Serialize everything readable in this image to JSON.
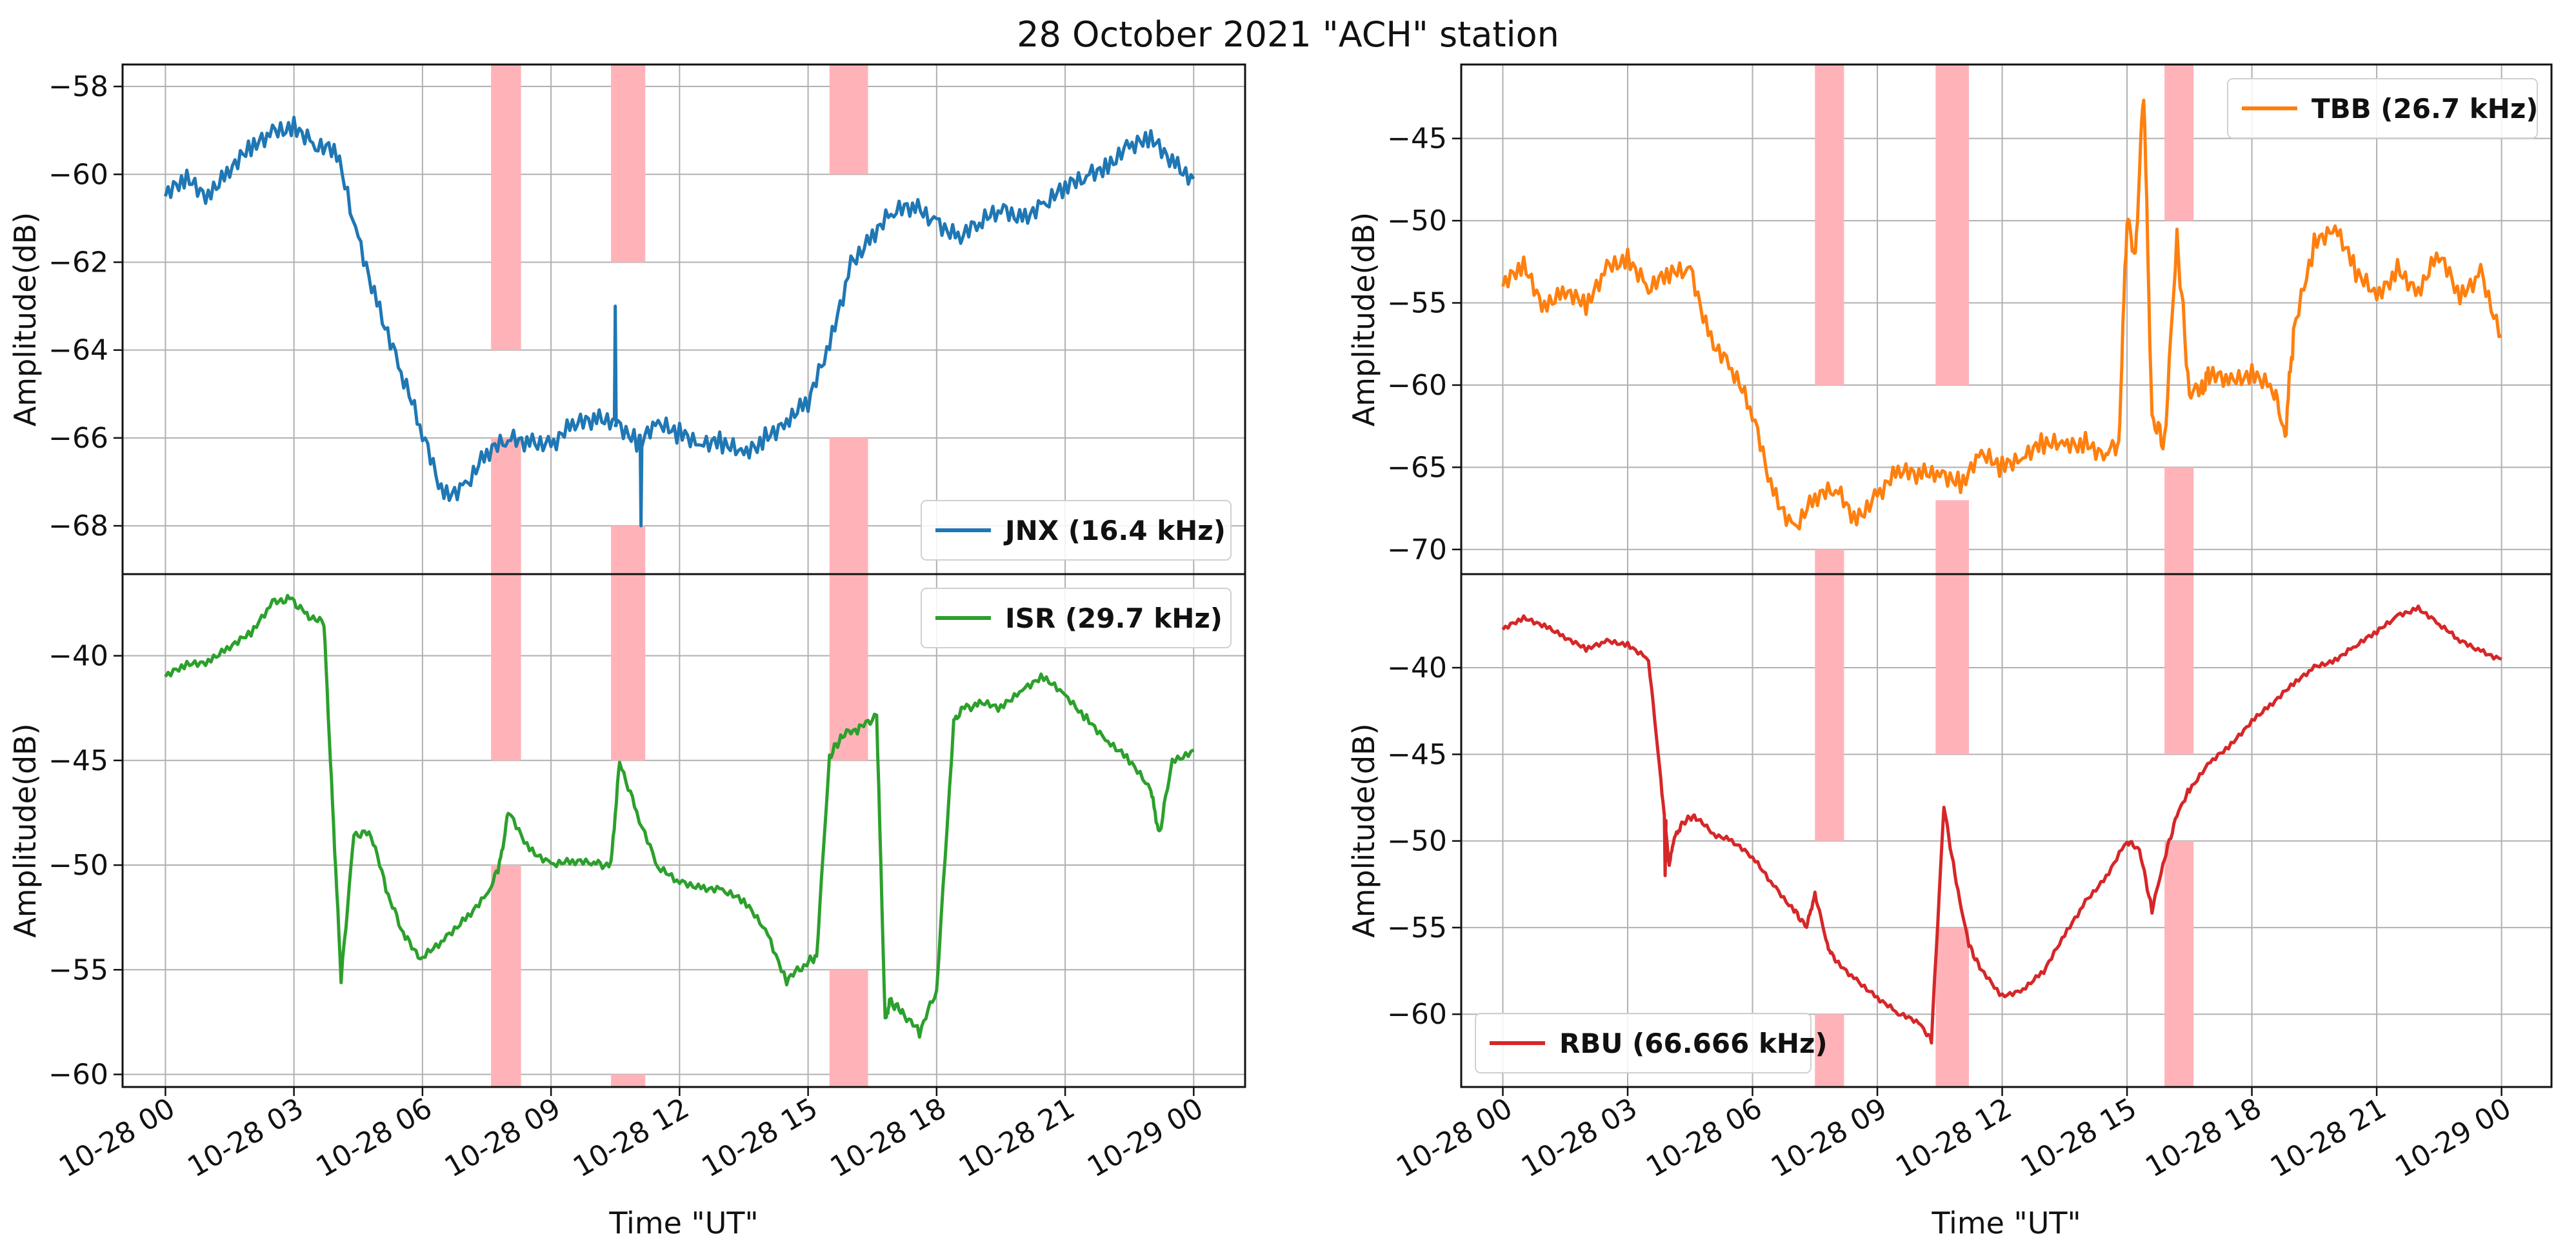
{
  "figure": {
    "title": "28 October 2021 \"ACH\" station"
  },
  "colors": {
    "jnx": "#1f77b4",
    "tbb": "#ff7f0e",
    "isr": "#2ca02c",
    "rbu": "#d62728",
    "shade": "#ffb3b8",
    "grid": "#b0b0b0"
  },
  "chart_data": [
    {
      "id": "jnx",
      "type": "line",
      "panel": "left-top",
      "legend": "JNX (16.4 kHz)",
      "legend_loc": "lower-right",
      "ylabel": "Amplitude(dB)",
      "xlabel": "",
      "ylim": [
        -69.1,
        -57.5
      ],
      "yticks": [
        -58,
        -60,
        -62,
        -64,
        -66,
        -68
      ],
      "ytick_labels": [
        "−58",
        "−60",
        "−62",
        "−64",
        "−66",
        "−68"
      ],
      "xlim_hours": [
        -1,
        25.2
      ],
      "x_hours": [
        0,
        0.5,
        1,
        1.5,
        2,
        2.5,
        3,
        3.5,
        4,
        4.5,
        5,
        5.5,
        6,
        6.5,
        7,
        7.5,
        8,
        8.5,
        9,
        9.5,
        10,
        10.5,
        11,
        11.5,
        12,
        12.5,
        13,
        13.5,
        14,
        14.5,
        15,
        15.5,
        16,
        16.5,
        17,
        17.5,
        18,
        18.5,
        19,
        19.5,
        20,
        20.5,
        21,
        21.5,
        22,
        22.5,
        23,
        23.5,
        24
      ],
      "values": [
        -60.5,
        -60.2,
        -60.4,
        -59.8,
        -59.5,
        -59.1,
        -58.8,
        -59.3,
        -59.6,
        -61.5,
        -63.0,
        -64.5,
        -66.0,
        -67.3,
        -67.0,
        -66.4,
        -66.1,
        -66.0,
        -66.1,
        -65.8,
        -65.6,
        -65.5,
        -66.1,
        -65.8,
        -65.9,
        -66.0,
        -66.1,
        -66.5,
        -66.0,
        -65.5,
        -65.2,
        -64.0,
        -62.0,
        -61.3,
        -60.9,
        -60.8,
        -61.0,
        -61.4,
        -61.2,
        -60.8,
        -60.9,
        -60.7,
        -60.4,
        -60.0,
        -59.7,
        -59.4,
        -59.3,
        -59.6,
        -60.1
      ],
      "spikes": [
        {
          "x_hours": 10.5,
          "value": -63.0
        },
        {
          "x_hours": 11.1,
          "value": -68.0
        }
      ]
    },
    {
      "id": "isr",
      "type": "line",
      "panel": "left-bottom",
      "legend": "ISR (29.7 kHz)",
      "legend_loc": "upper-right",
      "ylabel": "Amplitude(dB)",
      "xlabel": "Time \"UT\"",
      "ylim": [
        -60.6,
        -36.1
      ],
      "yticks": [
        -40,
        -45,
        -50,
        -55,
        -60
      ],
      "ytick_labels": [
        "−40",
        "−45",
        "−50",
        "−55",
        "−60"
      ],
      "xlim_hours": [
        -1,
        25.2
      ],
      "x_hours": [
        0,
        0.5,
        1,
        1.5,
        2,
        2.5,
        2.9,
        3.3,
        3.7,
        3.9,
        4.1,
        4.4,
        4.8,
        5.2,
        5.6,
        6.0,
        6.5,
        7.0,
        7.5,
        7.8,
        8.0,
        8.5,
        9,
        9.5,
        10,
        10.4,
        10.6,
        11.0,
        11.5,
        12,
        12.5,
        13,
        13.5,
        14,
        14.5,
        14.9,
        15.2,
        15.5,
        15.8,
        16.2,
        16.6,
        16.8,
        16.9,
        17.2,
        17.6,
        18.0,
        18.4,
        18.6,
        19,
        19.5,
        20,
        20.5,
        21,
        21.5,
        22,
        22.5,
        23,
        23.2,
        23.5,
        24
      ],
      "values": [
        -41.0,
        -40.5,
        -40.2,
        -39.5,
        -39.0,
        -37.5,
        -37.2,
        -38.0,
        -38.5,
        -47.0,
        -55.5,
        -48.5,
        -48.5,
        -51.5,
        -53.5,
        -54.5,
        -53.5,
        -52.5,
        -51.5,
        -50.0,
        -47.5,
        -49.2,
        -49.9,
        -49.9,
        -49.9,
        -50.0,
        -45.0,
        -47.5,
        -50.2,
        -50.8,
        -51.0,
        -51.2,
        -51.8,
        -53.0,
        -55.5,
        -54.8,
        -54.3,
        -44.8,
        -43.8,
        -43.5,
        -42.8,
        -57.5,
        -56.5,
        -57.0,
        -58.0,
        -56.0,
        -43.2,
        -42.5,
        -42.3,
        -42.5,
        -41.5,
        -41.0,
        -42.0,
        -43.0,
        -44.0,
        -45.0,
        -46.5,
        -48.5,
        -45.0,
        -44.5
      ]
    },
    {
      "id": "tbb",
      "type": "line",
      "panel": "right-top",
      "legend": "TBB (26.7 kHz)",
      "legend_loc": "upper-right",
      "ylabel": "Amplitude(dB)",
      "xlabel": "",
      "ylim": [
        -71.5,
        -40.5
      ],
      "yticks": [
        -45,
        -50,
        -55,
        -60,
        -65,
        -70
      ],
      "ytick_labels": [
        "−45",
        "−50",
        "−55",
        "−60",
        "−65",
        "−70"
      ],
      "xlim_hours": [
        -1,
        25.2
      ],
      "x_hours": [
        0,
        0.5,
        1,
        1.5,
        2,
        2.5,
        3,
        3.5,
        4,
        4.5,
        5,
        5.5,
        6,
        6.5,
        7,
        7.5,
        8,
        8.5,
        9,
        9.5,
        10,
        10.5,
        11,
        11.5,
        12,
        12.5,
        13,
        13.5,
        14,
        14.5,
        14.8,
        15.0,
        15.2,
        15.4,
        15.6,
        15.9,
        16.2,
        16.5,
        16.8,
        17.0,
        17.5,
        18,
        18.5,
        18.8,
        19,
        19.5,
        20,
        20.5,
        21,
        21.5,
        22,
        22.5,
        23,
        23.5,
        24
      ],
      "values": [
        -54.0,
        -53.0,
        -55.0,
        -54.0,
        -55.5,
        -53.0,
        -52.0,
        -54.0,
        -53.5,
        -53.0,
        -57.0,
        -59.0,
        -62.0,
        -66.5,
        -68.5,
        -67.0,
        -66.5,
        -68.0,
        -66.5,
        -65.5,
        -65.5,
        -65.0,
        -66.0,
        -64.5,
        -65.0,
        -64.0,
        -63.5,
        -64.0,
        -63.5,
        -64.0,
        -63.5,
        -50.0,
        -52.0,
        -42.0,
        -62.0,
        -63.5,
        -51.0,
        -60.5,
        -60.0,
        -59.5,
        -60.0,
        -59.0,
        -60.0,
        -63.0,
        -57.0,
        -51.5,
        -50.0,
        -53.0,
        -55.0,
        -53.0,
        -54.0,
        -52.0,
        -55.0,
        -53.0,
        -57.0
      ]
    },
    {
      "id": "rbu",
      "type": "line",
      "panel": "right-bottom",
      "legend": "RBU (66.666 kHz)",
      "legend_loc": "lower-left",
      "ylabel": "Amplitude(dB)",
      "xlabel": "Time \"UT\"",
      "ylim": [
        -64.2,
        -34.6
      ],
      "yticks": [
        -40,
        -45,
        -50,
        -55,
        -60
      ],
      "ytick_labels": [
        "−40",
        "−45",
        "−50",
        "−55",
        "−60"
      ],
      "xlim_hours": [
        -1,
        25.2
      ],
      "x_hours": [
        0,
        0.5,
        1,
        1.5,
        2,
        2.5,
        3,
        3.5,
        3.8,
        4.0,
        4.1,
        4.3,
        4.6,
        5.0,
        5.5,
        6.0,
        6.5,
        7.0,
        7.3,
        7.5,
        7.8,
        8.0,
        8.5,
        9,
        9.5,
        10,
        10.3,
        10.6,
        10.9,
        11.2,
        11.5,
        12,
        12.5,
        13,
        13.5,
        14,
        14.5,
        15.0,
        15.3,
        15.6,
        15.9,
        16.2,
        16.5,
        17,
        17.5,
        18,
        18.5,
        19,
        19.5,
        20,
        20.5,
        21,
        21.5,
        22,
        22.5,
        23,
        23.5,
        24
      ],
      "values": [
        -37.8,
        -37.2,
        -37.5,
        -38.2,
        -39.0,
        -38.5,
        -38.6,
        -39.5,
        -46.5,
        -51.5,
        -50.0,
        -49.0,
        -48.5,
        -49.5,
        -50.0,
        -51.0,
        -52.5,
        -54.0,
        -55.0,
        -53.0,
        -56.0,
        -57.0,
        -58.0,
        -59.0,
        -60.0,
        -60.5,
        -61.5,
        -48.0,
        -52.5,
        -56.0,
        -57.5,
        -59.0,
        -58.5,
        -57.5,
        -55.5,
        -53.5,
        -52.0,
        -50.0,
        -50.5,
        -54.0,
        -51.0,
        -48.5,
        -47.0,
        -45.5,
        -44.5,
        -43.0,
        -42.0,
        -41.0,
        -40.0,
        -39.5,
        -38.7,
        -38.0,
        -37.0,
        -36.5,
        -37.5,
        -38.5,
        -39.0,
        -39.5
      ],
      "spikes": [
        {
          "x_hours": 3.9,
          "value": -52.0
        }
      ]
    }
  ],
  "shaded_intervals": {
    "left": [
      {
        "start_hours": 7.6,
        "end_hours": 8.3,
        "gap_top": [
          -64.0,
          -66.0
        ],
        "gap_bottom": [
          -45.0,
          -50.0
        ]
      },
      {
        "start_hours": 10.4,
        "end_hours": 11.2,
        "gap_top": [
          -62.0,
          -68.0
        ],
        "gap_bottom": [
          -45.0,
          -60.0
        ]
      },
      {
        "start_hours": 15.5,
        "end_hours": 16.4,
        "gap_top": [
          -60.0,
          -66.0
        ],
        "gap_bottom": [
          -45.0,
          -55.0
        ]
      }
    ],
    "right": [
      {
        "start_hours": 7.5,
        "end_hours": 8.2,
        "gap_top": [
          -60.0,
          -70.0
        ],
        "gap_bottom": [
          -50.0,
          -60.0
        ]
      },
      {
        "start_hours": 10.4,
        "end_hours": 11.2,
        "gap_top": [
          -60.0,
          -67.0
        ],
        "gap_bottom": [
          -45.0,
          -55.0
        ]
      },
      {
        "start_hours": 15.9,
        "end_hours": 16.6,
        "gap_top": [
          -50.0,
          -65.0
        ],
        "gap_bottom": [
          -45.0,
          -50.0
        ]
      }
    ]
  },
  "x_axis": {
    "tick_hours": [
      0,
      3,
      6,
      9,
      12,
      15,
      18,
      21,
      24
    ],
    "tick_labels": [
      "10-28 00",
      "10-28 03",
      "10-28 06",
      "10-28 09",
      "10-28 12",
      "10-28 15",
      "10-28 18",
      "10-28 21",
      "10-29 00"
    ]
  }
}
